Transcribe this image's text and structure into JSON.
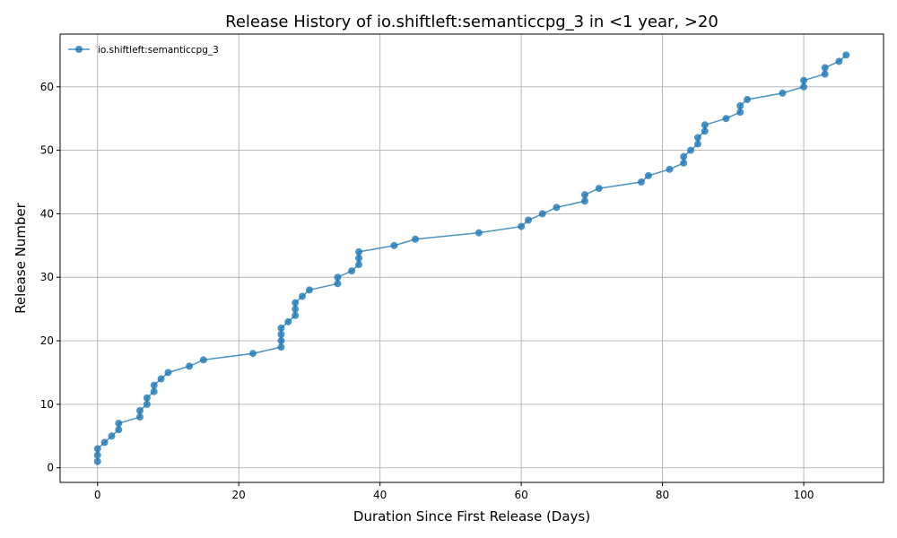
{
  "chart_data": {
    "type": "line",
    "title": "Release History of io.shiftleft:semanticcpg_3 in <1 year, >20",
    "xlabel": "Duration Since First Release (Days)",
    "ylabel": "Release Number",
    "xlim": [
      -5.3,
      111.3
    ],
    "ylim": [
      -2.3,
      68.3
    ],
    "x_ticks": [
      0,
      20,
      40,
      60,
      80,
      100
    ],
    "y_ticks": [
      0,
      10,
      20,
      30,
      40,
      50,
      60
    ],
    "grid": true,
    "legend_position": "top-left",
    "series": [
      {
        "name": "io.shiftleft:semanticcpg_3",
        "color": "#1f77b4",
        "marker": "circle",
        "points": [
          [
            0,
            1
          ],
          [
            0,
            2
          ],
          [
            0,
            3
          ],
          [
            1,
            4
          ],
          [
            2,
            5
          ],
          [
            3,
            6
          ],
          [
            3,
            7
          ],
          [
            6,
            8
          ],
          [
            6,
            9
          ],
          [
            7,
            10
          ],
          [
            7,
            11
          ],
          [
            8,
            12
          ],
          [
            8,
            13
          ],
          [
            9,
            14
          ],
          [
            10,
            15
          ],
          [
            13,
            16
          ],
          [
            15,
            17
          ],
          [
            22,
            18
          ],
          [
            26,
            19
          ],
          [
            26,
            20
          ],
          [
            26,
            21
          ],
          [
            26,
            22
          ],
          [
            27,
            23
          ],
          [
            28,
            24
          ],
          [
            28,
            25
          ],
          [
            28,
            26
          ],
          [
            29,
            27
          ],
          [
            30,
            28
          ],
          [
            34,
            29
          ],
          [
            34,
            30
          ],
          [
            36,
            31
          ],
          [
            37,
            32
          ],
          [
            37,
            33
          ],
          [
            37,
            34
          ],
          [
            42,
            35
          ],
          [
            45,
            36
          ],
          [
            54,
            37
          ],
          [
            60,
            38
          ],
          [
            61,
            39
          ],
          [
            63,
            40
          ],
          [
            65,
            41
          ],
          [
            69,
            42
          ],
          [
            69,
            43
          ],
          [
            71,
            44
          ],
          [
            77,
            45
          ],
          [
            78,
            46
          ],
          [
            81,
            47
          ],
          [
            83,
            48
          ],
          [
            83,
            49
          ],
          [
            84,
            50
          ],
          [
            85,
            51
          ],
          [
            85,
            52
          ],
          [
            86,
            53
          ],
          [
            86,
            54
          ],
          [
            89,
            55
          ],
          [
            91,
            56
          ],
          [
            91,
            57
          ],
          [
            92,
            58
          ],
          [
            97,
            59
          ],
          [
            100,
            60
          ],
          [
            100,
            61
          ],
          [
            103,
            62
          ],
          [
            103,
            63
          ],
          [
            105,
            64
          ],
          [
            106,
            65
          ]
        ]
      }
    ]
  }
}
